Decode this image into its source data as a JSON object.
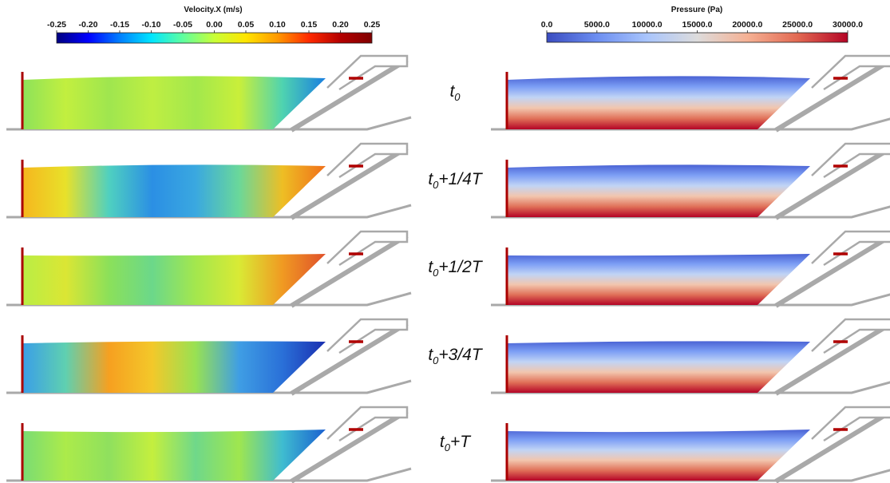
{
  "velocity_colorbar": {
    "title": "Velocity.X (m/s)",
    "ticks": [
      "-0.25",
      "-0.20",
      "-0.15",
      "-0.10",
      "-0.05",
      "0.00",
      "0.05",
      "0.10",
      "0.15",
      "0.20",
      "0.25"
    ],
    "colors": [
      "#00007f",
      "#0000ff",
      "#007fff",
      "#00e5ff",
      "#5fff9f",
      "#c8ff37",
      "#ffe500",
      "#ff9900",
      "#ff2a00",
      "#b40000",
      "#7f0000"
    ]
  },
  "pressure_colorbar": {
    "title": "Pressure (Pa)",
    "ticks": [
      "0.0",
      "5000.0",
      "10000.0",
      "15000.0",
      "20000.0",
      "25000.0",
      "30000.0"
    ],
    "colors": [
      "#3a4cc0",
      "#6c8ef1",
      "#a9c5fc",
      "#dddcdc",
      "#f5b194",
      "#e26952",
      "#b40426"
    ]
  },
  "time_labels": [
    {
      "base": "t",
      "sub": "0",
      "suffix": ""
    },
    {
      "base": "t",
      "sub": "0",
      "suffix": "+1/4T"
    },
    {
      "base": "t",
      "sub": "0",
      "suffix": "+1/2T"
    },
    {
      "base": "t",
      "sub": "0",
      "suffix": "+3/4T"
    },
    {
      "base": "t",
      "sub": "0",
      "suffix": "+T"
    }
  ],
  "velocity_fields": [
    {
      "stops": [
        "#8de25a",
        "#c2ef3f",
        "#9fe64f",
        "#bfee42",
        "#a2e84d",
        "#c9ef3a",
        "#4fd3b0",
        "#1a7fe0"
      ]
    },
    {
      "stops": [
        "#f6b61e",
        "#e8e12a",
        "#4fd0c0",
        "#2b8fe4",
        "#3aa8e0",
        "#6ad89a",
        "#eebe24",
        "#f0701a"
      ]
    },
    {
      "stops": [
        "#b9ee45",
        "#dbe634",
        "#8be05a",
        "#6bd88a",
        "#a4e74d",
        "#d9ea35",
        "#f09a22",
        "#e0502a"
      ]
    },
    {
      "stops": [
        "#3a9ee8",
        "#5fd0b0",
        "#f6a020",
        "#f3c82a",
        "#98e153",
        "#3f9ee4",
        "#2a70d8",
        "#1a2fb0"
      ]
    },
    {
      "stops": [
        "#79dc74",
        "#aceb4a",
        "#8fe05e",
        "#c4ef3e",
        "#6fd88a",
        "#9fe64f",
        "#3fbcd0",
        "#1a60d0"
      ]
    }
  ]
}
